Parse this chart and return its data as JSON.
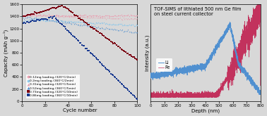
{
  "left_xlabel": "Cycle number",
  "left_ylabel": "Capacity (mAh g⁻¹)",
  "left_xlim": [
    0,
    100
  ],
  "left_ylim": [
    0,
    1600
  ],
  "left_yticks": [
    0,
    200,
    400,
    600,
    800,
    1000,
    1200,
    1400,
    1600
  ],
  "left_xticks": [
    0,
    20,
    40,
    60,
    80,
    100
  ],
  "right_title": "TOF-SIMS of lithiated 500 nm Ge film\non steel current collector",
  "right_xlabel": "Depth (nm)",
  "right_ylabel": "Intensity (a.u.)",
  "right_xlim": [
    0,
    800
  ],
  "right_xticks": [
    0,
    100,
    200,
    300,
    400,
    500,
    600,
    700,
    800
  ],
  "series": [
    {
      "label": "0.12mg loading-(320°C/2min)",
      "color": "#e8a0b0",
      "marker": "o"
    },
    {
      "label": "0.2mg loading-(360°C/2min)",
      "color": "#90c8e8",
      "marker": "o"
    },
    {
      "label": "0.31mg loading-(320°C/5min)",
      "color": "#e8a0b0",
      "marker": "^"
    },
    {
      "label": "0.52mg loading-(360°C/5min)",
      "color": "#5090d0",
      "marker": "^"
    },
    {
      "label": "0.73mg loading-(320°C/10min)",
      "color": "#7a0010",
      "marker": "s"
    },
    {
      "label": "0.86mg loading-(360°C/10min)",
      "color": "#1a3a90",
      "marker": "s"
    }
  ],
  "series_params": [
    [
      1400,
      1420,
      3,
      1420,
      1410
    ],
    [
      1320,
      1350,
      8,
      1350,
      1250
    ],
    [
      1410,
      1430,
      4,
      1430,
      1360
    ],
    [
      1360,
      1390,
      5,
      1390,
      1130
    ],
    [
      1390,
      1580,
      35,
      1580,
      670
    ],
    [
      1290,
      1390,
      28,
      1390,
      30
    ]
  ],
  "tof_li_color": "#5090d0",
  "tof_fe_color": "#c02050",
  "bg_color": "#d8d8d8"
}
